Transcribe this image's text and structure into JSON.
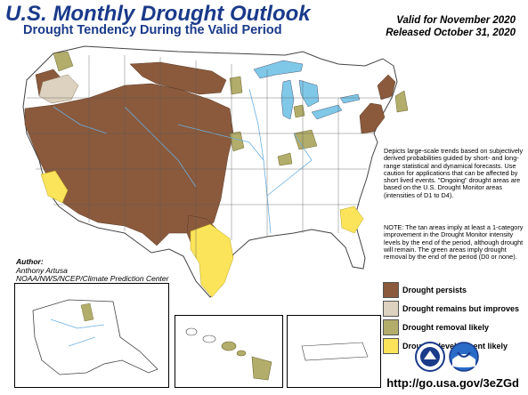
{
  "header": {
    "title": "U.S. Monthly Drought Outlook",
    "subtitle": "Drought Tendency During the Valid Period",
    "valid_line": "Valid for November 2020",
    "released_line": "Released October 31, 2020"
  },
  "description": "Depicts large-scale trends based on subjectively derived probabilities guided by short- and long-range statistical and dynamical forecasts. Use caution for applications that can be affected by short lived events. \"Ongoing\" drought areas are based on the U.S. Drought Monitor areas (intensities of D1 to D4).",
  "note": "NOTE: The tan areas imply at least a 1-category improvement in the Drought Monitor intensity levels by the end of the period, although drought will remain. The green areas imply drought removal by the end of the period (D0 or none).",
  "author": {
    "heading": "Author:",
    "name": "Anthony Artusa",
    "org": "NOAA/NWS/NCEP/Climate Prediction Center"
  },
  "legend": [
    {
      "label": "Drought persists",
      "color": "#8b5a3c"
    },
    {
      "label": "Drought remains but improves",
      "color": "#ddd2bf"
    },
    {
      "label": "Drought removal likely",
      "color": "#b3ad6b"
    },
    {
      "label": "Drought development likely",
      "color": "#fbe45a"
    }
  ],
  "url": "http://go.usa.gov/3eZGd",
  "colors": {
    "title": "#1a3a8a",
    "persists": "#8b5a3c",
    "improves": "#ddd2bf",
    "removal": "#b3ad6b",
    "development": "#fbe45a",
    "water": "#7fc8e8",
    "rivers": "#6aaee0"
  },
  "logos": [
    "noaa-nws-logo",
    "noaa-logo"
  ]
}
